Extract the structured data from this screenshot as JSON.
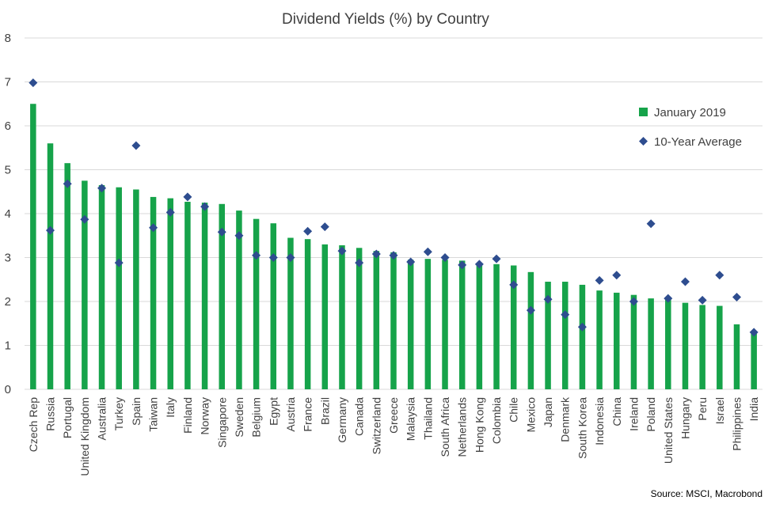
{
  "chart_data": {
    "type": "bar",
    "title": "Dividend Yields (%) by Country",
    "xlabel": "",
    "ylabel": "",
    "ylim": [
      0,
      8
    ],
    "yticks": [
      0,
      1,
      2,
      3,
      4,
      5,
      6,
      7,
      8
    ],
    "grid": true,
    "legend_position": "right",
    "source": "Source: MSCI, Macrobond",
    "colors": {
      "bar": "#16a34a",
      "marker": "#2e4d8f",
      "grid": "#d9d9d9"
    },
    "categories": [
      "Czech Rep",
      "Russia",
      "Portugal",
      "United Kingdom",
      "Australia",
      "Turkey",
      "Spain",
      "Taiwan",
      "Italy",
      "Finland",
      "Norway",
      "Singapore",
      "Sweden",
      "Belgium",
      "Egypt",
      "Austria",
      "France",
      "Brazil",
      "Germany",
      "Canada",
      "Switzerland",
      "Greece",
      "Malaysia",
      "Thailand",
      "South Africa",
      "Netherlands",
      "Hong Kong",
      "Colombia",
      "Chile",
      "Mexico",
      "Japan",
      "Denmark",
      "South Korea",
      "Indonesia",
      "China",
      "Ireland",
      "Poland",
      "United States",
      "Hungary",
      "Peru",
      "Israel",
      "Philippines",
      "India"
    ],
    "series": [
      {
        "name": "January 2019",
        "type": "bar",
        "values": [
          6.5,
          5.6,
          5.15,
          4.75,
          4.65,
          4.6,
          4.55,
          4.38,
          4.35,
          4.27,
          4.25,
          4.22,
          4.07,
          3.88,
          3.78,
          3.45,
          3.42,
          3.3,
          3.28,
          3.22,
          3.15,
          3.12,
          2.95,
          2.97,
          2.95,
          2.93,
          2.88,
          2.85,
          2.82,
          2.67,
          2.45,
          2.45,
          2.38,
          2.25,
          2.2,
          2.15,
          2.07,
          2.07,
          1.97,
          1.92,
          1.9,
          1.48,
          1.27
        ]
      },
      {
        "name": "10-Year Average",
        "type": "scatter",
        "values": [
          6.98,
          3.62,
          4.68,
          3.87,
          4.58,
          2.88,
          5.55,
          3.68,
          4.03,
          4.38,
          4.16,
          3.58,
          3.5,
          3.05,
          3.0,
          3.0,
          3.6,
          3.7,
          3.15,
          2.88,
          3.08,
          3.05,
          2.9,
          3.13,
          3.0,
          2.83,
          2.85,
          2.97,
          2.38,
          1.8,
          2.05,
          1.7,
          1.42,
          2.48,
          2.6,
          2.0,
          3.77,
          2.07,
          2.45,
          2.03,
          2.6,
          2.1,
          1.3
        ]
      }
    ]
  }
}
